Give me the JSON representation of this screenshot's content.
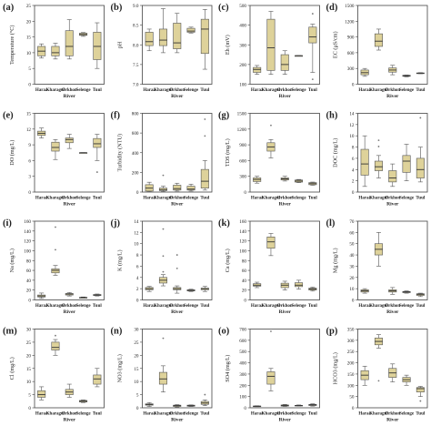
{
  "chart_data": [
    {
      "letter": "(a)",
      "type": "box",
      "ylabel": "Temperature (°C)",
      "xlabel": "",
      "ylim": [
        0,
        25
      ],
      "ticks": [
        0,
        5,
        10,
        15,
        20,
        25
      ],
      "categories": [
        "Haraa",
        "Kharagul",
        "Orkhon",
        "Selenge",
        "Tuul"
      ],
      "boxes": [
        {
          "min": 8.3,
          "q1": 9,
          "med": 10.5,
          "q3": 12,
          "max": 12.8
        },
        {
          "min": 8,
          "q1": 9,
          "med": 10,
          "q3": 12,
          "max": 13
        },
        {
          "min": 8,
          "q1": 9,
          "med": 12,
          "q3": 17,
          "max": 20.5
        },
        {
          "min": 15.2,
          "q1": 15.5,
          "med": 15.8,
          "q3": 16.2,
          "max": 16.4
        },
        {
          "min": 5,
          "q1": 7.8,
          "med": 12,
          "q3": 16.5,
          "max": 19.5
        }
      ],
      "outliers": [
        [],
        [],
        [],
        [],
        []
      ]
    },
    {
      "letter": "(b)",
      "type": "box",
      "ylabel": "pH",
      "xlabel": "",
      "ylim": [
        7.0,
        9.0
      ],
      "ticks": [
        7.0,
        7.5,
        8.0,
        8.5,
        9.0
      ],
      "categories": [
        "Haraa",
        "Kharagul",
        "Orkhon",
        "Selenge",
        "Tuul"
      ],
      "boxes": [
        {
          "min": 7.85,
          "q1": 7.98,
          "med": 8.08,
          "q3": 8.32,
          "max": 8.4
        },
        {
          "min": 7.8,
          "q1": 7.98,
          "med": 8.12,
          "q3": 8.4,
          "max": 8.92
        },
        {
          "min": 7.8,
          "q1": 7.9,
          "med": 8.05,
          "q3": 8.55,
          "max": 8.8
        },
        {
          "min": 8.3,
          "q1": 8.32,
          "med": 8.35,
          "q3": 8.42,
          "max": 8.45
        },
        {
          "min": 7.38,
          "q1": 7.78,
          "med": 8.4,
          "q3": 8.65,
          "max": 8.9
        }
      ],
      "outliers": [
        [],
        [],
        [],
        [],
        []
      ]
    },
    {
      "letter": "(c)",
      "type": "box",
      "ylabel": "Eh (mV)",
      "xlabel": "",
      "ylim": [
        100,
        500
      ],
      "ticks": [
        100,
        200,
        300,
        400,
        500
      ],
      "categories": [
        "Haraa",
        "Kharagul",
        "Orkhon",
        "Selenge",
        "Tuul"
      ],
      "boxes": [
        {
          "min": 150,
          "q1": 160,
          "med": 175,
          "q3": 185,
          "max": 195
        },
        {
          "min": 150,
          "q1": 170,
          "med": 285,
          "q3": 430,
          "max": 470
        },
        {
          "min": 150,
          "q1": 170,
          "med": 200,
          "q3": 250,
          "max": 270
        },
        {
          "min": 245,
          "q1": 245,
          "med": 245,
          "q3": 245,
          "max": 245
        },
        {
          "min": 160,
          "q1": 310,
          "med": 340,
          "q3": 390,
          "max": 405
        }
      ],
      "outliers": [
        [],
        [],
        [],
        [],
        [
          458,
          125
        ]
      ]
    },
    {
      "letter": "(d)",
      "type": "box",
      "ylabel": "EC (μS/cm)",
      "xlabel": "",
      "ylim": [
        0,
        1500
      ],
      "ticks": [
        0,
        300,
        600,
        900,
        1200,
        1500
      ],
      "categories": [
        "Haraa",
        "Kharagul",
        "Orkhon",
        "Selenge",
        "Tuul"
      ],
      "boxes": [
        {
          "min": 150,
          "q1": 180,
          "med": 220,
          "q3": 270,
          "max": 300
        },
        {
          "min": 650,
          "q1": 720,
          "med": 820,
          "q3": 960,
          "max": 1050
        },
        {
          "min": 180,
          "q1": 230,
          "med": 270,
          "q3": 310,
          "max": 360
        },
        {
          "min": 140,
          "q1": 150,
          "med": 160,
          "q3": 170,
          "max": 175
        },
        {
          "min": 200,
          "q1": 205,
          "med": 210,
          "q3": 215,
          "max": 220
        }
      ],
      "outliers": [
        [],
        [],
        [],
        [],
        []
      ]
    },
    {
      "letter": "(e)",
      "type": "box",
      "ylabel": "DO (mg/L)",
      "xlabel": "",
      "ylim": [
        0,
        15
      ],
      "ticks": [
        0,
        3,
        6,
        9,
        12,
        15
      ],
      "categories": [
        "Haraa",
        "Kharagul",
        "Orkhon",
        "Selenge",
        "Tuul"
      ],
      "boxes": [
        {
          "min": 10.3,
          "q1": 10.8,
          "med": 11.2,
          "q3": 11.6,
          "max": 12.2
        },
        {
          "min": 6.2,
          "q1": 7.8,
          "med": 8.5,
          "q3": 9.5,
          "max": 10
        },
        {
          "min": 8.3,
          "q1": 9.4,
          "med": 10,
          "q3": 10.3,
          "max": 11
        },
        {
          "min": 7.5,
          "q1": 7.5,
          "med": 7.5,
          "q3": 7.5,
          "max": 7.5
        },
        {
          "min": 6,
          "q1": 8.5,
          "med": 9.2,
          "q3": 10.2,
          "max": 11
        }
      ],
      "outliers": [
        [],
        [],
        [],
        [],
        [
          3.8
        ]
      ]
    },
    {
      "letter": "(f)",
      "type": "box",
      "ylabel": "Turbidity (NTU)",
      "xlabel": "",
      "ylim": [
        0,
        800
      ],
      "ticks": [
        0,
        200,
        400,
        600,
        800
      ],
      "categories": [
        "Haraa",
        "Kharagul",
        "Orkhon",
        "Selenge",
        "Tuul"
      ],
      "boxes": [
        {
          "min": 5,
          "q1": 10,
          "med": 40,
          "q3": 75,
          "max": 100
        },
        {
          "min": 5,
          "q1": 15,
          "med": 25,
          "q3": 40,
          "max": 60
        },
        {
          "min": 10,
          "q1": 20,
          "med": 35,
          "q3": 70,
          "max": 90
        },
        {
          "min": 10,
          "q1": 20,
          "med": 30,
          "q3": 60,
          "max": 80
        },
        {
          "min": 20,
          "q1": 40,
          "med": 110,
          "q3": 230,
          "max": 320
        }
      ],
      "outliers": [
        [],
        [
          170
        ],
        [],
        [],
        [
          570,
          740
        ]
      ]
    },
    {
      "letter": "(g)",
      "type": "box",
      "ylabel": "TDS (mg/L)",
      "xlabel": "",
      "ylim": [
        0,
        1500
      ],
      "ticks": [
        0,
        300,
        600,
        900,
        1200,
        1500
      ],
      "categories": [
        "Haraa",
        "Kharagul",
        "Orkhon",
        "Selenge",
        "Tuul"
      ],
      "boxes": [
        {
          "min": 170,
          "q1": 200,
          "med": 240,
          "q3": 270,
          "max": 300
        },
        {
          "min": 650,
          "q1": 780,
          "med": 860,
          "q3": 940,
          "max": 1000
        },
        {
          "min": 210,
          "q1": 230,
          "med": 250,
          "q3": 270,
          "max": 300
        },
        {
          "min": 180,
          "q1": 190,
          "med": 210,
          "q3": 230,
          "max": 240
        },
        {
          "min": 130,
          "q1": 140,
          "med": 160,
          "q3": 180,
          "max": 190
        }
      ],
      "outliers": [
        [],
        [
          1270
        ],
        [],
        [],
        []
      ]
    },
    {
      "letter": "(h)",
      "type": "box",
      "ylabel": "DOC (mg/L)",
      "xlabel": "",
      "ylim": [
        0,
        14
      ],
      "ticks": [
        0,
        2,
        4,
        6,
        8,
        10,
        12,
        14
      ],
      "categories": [
        "Haraa",
        "Kharagul",
        "Orkhon",
        "Selenge",
        "Tuul"
      ],
      "boxes": [
        {
          "min": 1,
          "q1": 3,
          "med": 5,
          "q3": 7.6,
          "max": 10
        },
        {
          "min": 2.5,
          "q1": 3.8,
          "med": 4.5,
          "q3": 5.5,
          "max": 6.5
        },
        {
          "min": 1,
          "q1": 1.8,
          "med": 2.5,
          "q3": 3.8,
          "max": 5
        },
        {
          "min": 2,
          "q1": 3.5,
          "med": 5.5,
          "q3": 6.5,
          "max": 8.5
        },
        {
          "min": 1.8,
          "q1": 2.5,
          "med": 4,
          "q3": 6,
          "max": 8
        }
      ],
      "outliers": [
        [],
        [
          9.2,
          8.1
        ],
        [],
        [],
        [
          13.2
        ]
      ]
    },
    {
      "letter": "(i)",
      "type": "box",
      "ylabel": "Na (mg/L)",
      "xlabel": "",
      "ylim": [
        0,
        160
      ],
      "ticks": [
        0,
        20,
        40,
        60,
        80,
        100,
        120,
        140,
        160
      ],
      "categories": [
        "Haraa",
        "Kharagul",
        "Orkhon",
        "Selenge",
        "Tuul"
      ],
      "boxes": [
        {
          "min": 3,
          "q1": 6,
          "med": 8,
          "q3": 10,
          "max": 14
        },
        {
          "min": 50,
          "q1": 55,
          "med": 60,
          "q3": 63,
          "max": 70
        },
        {
          "min": 8,
          "q1": 10,
          "med": 12,
          "q3": 13,
          "max": 15
        },
        {
          "min": 4,
          "q1": 4,
          "med": 5,
          "q3": 5,
          "max": 6
        },
        {
          "min": 8,
          "q1": 9,
          "med": 10,
          "q3": 11,
          "max": 12
        }
      ],
      "outliers": [
        [],
        [
          148,
          102
        ],
        [],
        [],
        []
      ]
    },
    {
      "letter": "(j)",
      "type": "box",
      "ylabel": "K (mg/L)",
      "xlabel": "",
      "ylim": [
        0,
        14
      ],
      "ticks": [
        0,
        2,
        4,
        6,
        8,
        10,
        12,
        14
      ],
      "categories": [
        "Haraa",
        "Kharagul",
        "Orkhon",
        "Selenge",
        "Tuul"
      ],
      "boxes": [
        {
          "min": 1.5,
          "q1": 1.8,
          "med": 2,
          "q3": 2.2,
          "max": 2.4
        },
        {
          "min": 2.5,
          "q1": 3,
          "med": 3.5,
          "q3": 4,
          "max": 4.5
        },
        {
          "min": 1.2,
          "q1": 1.8,
          "med": 2,
          "q3": 2.2,
          "max": 2.5
        },
        {
          "min": 1.5,
          "q1": 1.6,
          "med": 1.7,
          "q3": 1.8,
          "max": 1.9
        },
        {
          "min": 1.5,
          "q1": 1.8,
          "med": 2,
          "q3": 2.1,
          "max": 2.4
        }
      ],
      "outliers": [
        [],
        [
          12.6,
          7.8,
          5
        ],
        [
          8,
          5.6
        ],
        [],
        []
      ]
    },
    {
      "letter": "(k)",
      "type": "box",
      "ylabel": "Ca (mg/L)",
      "xlabel": "",
      "ylim": [
        0,
        160
      ],
      "ticks": [
        0,
        20,
        40,
        60,
        80,
        100,
        120,
        140,
        160
      ],
      "categories": [
        "Haraa",
        "Kharagul",
        "Orkhon",
        "Selenge",
        "Tuul"
      ],
      "boxes": [
        {
          "min": 25,
          "q1": 28,
          "med": 30,
          "q3": 33,
          "max": 36
        },
        {
          "min": 90,
          "q1": 105,
          "med": 118,
          "q3": 128,
          "max": 135
        },
        {
          "min": 20,
          "q1": 25,
          "med": 30,
          "q3": 34,
          "max": 38
        },
        {
          "min": 22,
          "q1": 27,
          "med": 30,
          "q3": 35,
          "max": 40
        },
        {
          "min": 18,
          "q1": 20,
          "med": 22,
          "q3": 24,
          "max": 26
        }
      ],
      "outliers": [
        [],
        [],
        [],
        [],
        []
      ]
    },
    {
      "letter": "(l)",
      "type": "box",
      "ylabel": "Mg (mg/L)",
      "xlabel": "",
      "ylim": [
        0,
        70
      ],
      "ticks": [
        0,
        10,
        20,
        30,
        40,
        50,
        60,
        70
      ],
      "categories": [
        "Haraa",
        "Kharagul",
        "Orkhon",
        "Selenge",
        "Tuul"
      ],
      "boxes": [
        {
          "min": 6,
          "q1": 7,
          "med": 8,
          "q3": 9,
          "max": 10
        },
        {
          "min": 30,
          "q1": 40,
          "med": 45,
          "q3": 50,
          "max": 60
        },
        {
          "min": 5,
          "q1": 7,
          "med": 8,
          "q3": 9,
          "max": 11
        },
        {
          "min": 6,
          "q1": 6.5,
          "med": 7,
          "q3": 7.5,
          "max": 8
        },
        {
          "min": 3,
          "q1": 4,
          "med": 5,
          "q3": 5.5,
          "max": 6
        }
      ],
      "outliers": [
        [],
        [],
        [],
        [],
        []
      ]
    },
    {
      "letter": "(m)",
      "type": "box",
      "ylabel": "Cl (mg/L)",
      "xlabel": "",
      "ylim": [
        0,
        30
      ],
      "ticks": [
        0,
        5,
        10,
        15,
        20,
        25,
        30
      ],
      "categories": [
        "Haraa",
        "Kharagul",
        "Orkhon",
        "Selenge",
        "Tuul"
      ],
      "boxes": [
        {
          "min": 3,
          "q1": 4,
          "med": 5,
          "q3": 6.5,
          "max": 8
        },
        {
          "min": 20,
          "q1": 22,
          "med": 23,
          "q3": 25,
          "max": 26
        },
        {
          "min": 4,
          "q1": 5,
          "med": 6,
          "q3": 7,
          "max": 9
        },
        {
          "min": 2,
          "q1": 2.2,
          "med": 2.5,
          "q3": 2.8,
          "max": 3
        },
        {
          "min": 8,
          "q1": 9,
          "med": 11,
          "q3": 12.5,
          "max": 15
        }
      ],
      "outliers": [
        [],
        [
          27.5
        ],
        [],
        [],
        []
      ]
    },
    {
      "letter": "(n)",
      "type": "box",
      "ylabel": "NO3 (mg/L)",
      "xlabel": "",
      "ylim": [
        0,
        30
      ],
      "ticks": [
        0,
        5,
        10,
        15,
        20,
        25,
        30
      ],
      "categories": [
        "Haraa",
        "Kharagul",
        "Orkhon",
        "Selenge",
        "Tuul"
      ],
      "boxes": [
        {
          "min": 0.5,
          "q1": 1,
          "med": 1.2,
          "q3": 1.5,
          "max": 2
        },
        {
          "min": 6,
          "q1": 9,
          "med": 11,
          "q3": 13.5,
          "max": 16
        },
        {
          "min": 0.3,
          "q1": 0.5,
          "med": 0.8,
          "q3": 1,
          "max": 1.2
        },
        {
          "min": 0.5,
          "q1": 0.6,
          "med": 0.8,
          "q3": 1,
          "max": 1.1
        },
        {
          "min": 0.8,
          "q1": 1.3,
          "med": 1.8,
          "q3": 2.4,
          "max": 3
        }
      ],
      "outliers": [
        [],
        [
          26.5
        ],
        [],
        [],
        [
          5
        ]
      ]
    },
    {
      "letter": "(o)",
      "type": "box",
      "ylabel": "SO4 (mg/L)",
      "xlabel": "",
      "ylim": [
        0,
        700
      ],
      "ticks": [
        0,
        100,
        200,
        300,
        400,
        500,
        600,
        700
      ],
      "categories": [
        "Haraa",
        "Kharagul",
        "Orkhon",
        "Selenge",
        "Tuul"
      ],
      "boxes": [
        {
          "min": 10,
          "q1": 12,
          "med": 14,
          "q3": 16,
          "max": 18
        },
        {
          "min": 150,
          "q1": 210,
          "med": 280,
          "q3": 320,
          "max": 350
        },
        {
          "min": 12,
          "q1": 15,
          "med": 20,
          "q3": 25,
          "max": 30
        },
        {
          "min": 15,
          "q1": 18,
          "med": 20,
          "q3": 22,
          "max": 25
        },
        {
          "min": 15,
          "q1": 20,
          "med": 25,
          "q3": 30,
          "max": 35
        }
      ],
      "outliers": [
        [],
        [
          680
        ],
        [],
        [],
        []
      ]
    },
    {
      "letter": "(p)",
      "type": "box",
      "ylabel": "HCO3 (mg/L)",
      "xlabel": "",
      "ylim": [
        0,
        350
      ],
      "ticks": [
        0,
        50,
        100,
        150,
        200,
        250,
        300,
        350
      ],
      "categories": [
        "Haraa",
        "Kharagul",
        "Orkhon",
        "Selenge",
        "Tuul"
      ],
      "boxes": [
        {
          "min": 100,
          "q1": 125,
          "med": 145,
          "q3": 165,
          "max": 185
        },
        {
          "min": 265,
          "q1": 280,
          "med": 295,
          "q3": 310,
          "max": 325
        },
        {
          "min": 115,
          "q1": 135,
          "med": 155,
          "q3": 175,
          "max": 195
        },
        {
          "min": 100,
          "q1": 115,
          "med": 125,
          "q3": 135,
          "max": 145
        },
        {
          "min": 50,
          "q1": 70,
          "med": 85,
          "q3": 90,
          "max": 95
        }
      ],
      "outliers": [
        [],
        [
          120
        ],
        [],
        [],
        [
          30
        ]
      ]
    }
  ],
  "shared_xlabel": "River",
  "style": {
    "box_fill": "#ded29a",
    "box_stroke": "#555555",
    "axis_color": "#444444"
  }
}
